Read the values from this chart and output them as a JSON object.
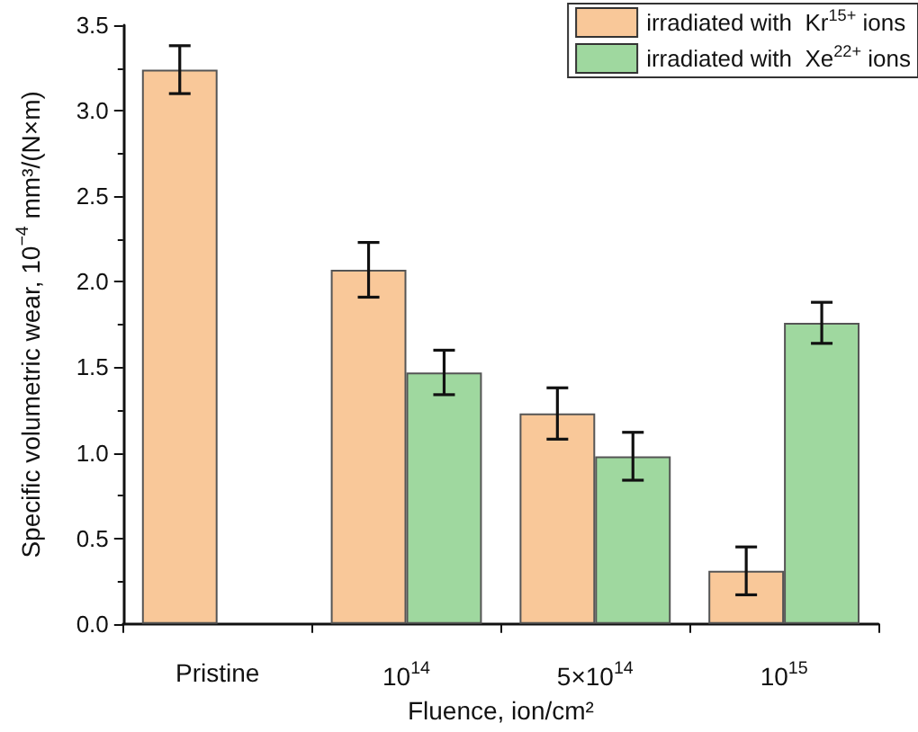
{
  "chart_data": {
    "type": "bar",
    "xlabel": "Fluence, ion/cm²",
    "ylabel": "Specific volumetric wear, 10$^{−4}$ mm³/(N×m)",
    "categories": [
      "Pristine",
      "10$^{14}$",
      "5×10$^{14}$",
      "10$^{15}$"
    ],
    "series": [
      {
        "name": "irradiated with  Kr$^{15+}$ ions",
        "color": "#f9c899",
        "values": [
          3.24,
          2.07,
          1.23,
          0.31
        ],
        "errors": [
          [
            3.1,
            3.38
          ],
          [
            1.91,
            2.23
          ],
          [
            1.08,
            1.38
          ],
          [
            0.17,
            0.45
          ]
        ]
      },
      {
        "name": "irradiated with  Xe$^{22+}$ ions",
        "color": "#9fd89f",
        "values": [
          null,
          1.47,
          0.98,
          1.76
        ],
        "errors": [
          null,
          [
            1.34,
            1.6
          ],
          [
            0.84,
            1.12
          ],
          [
            1.64,
            1.88
          ]
        ]
      }
    ],
    "ylim": [
      0,
      3.5
    ],
    "yticks": [
      {
        "value": 0,
        "label": "0.0"
      },
      0.5,
      {
        "value": 1,
        "label": "1.0"
      },
      1.5,
      {
        "value": 2,
        "label": "2.0"
      },
      2.5,
      {
        "value": 3,
        "label": "3.0"
      },
      3.5
    ],
    "grid": false,
    "legend": "top right"
  }
}
